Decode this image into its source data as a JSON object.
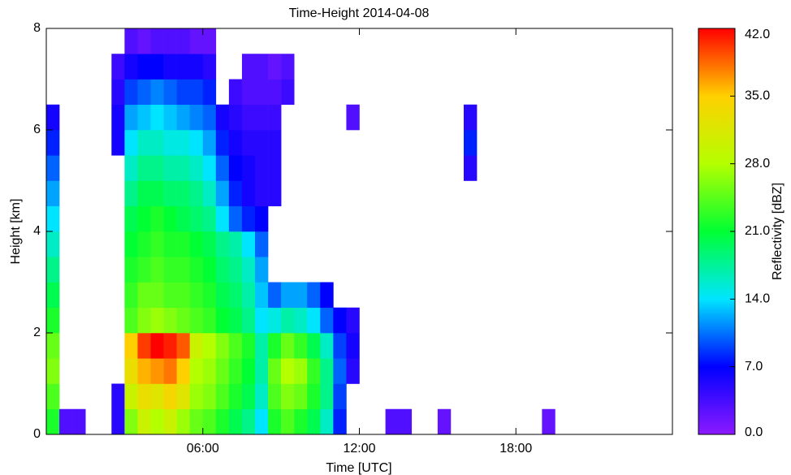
{
  "chart_data": {
    "type": "heatmap",
    "title": "Time-Height  2014-04-08",
    "x_label": "Time [UTC]",
    "y_label": "Height [km]",
    "colorbar_label": "Reflectivity [dBZ]",
    "xlim": [
      0,
      24
    ],
    "xticks": [
      {
        "value": 6,
        "label": "06:00"
      },
      {
        "value": 12,
        "label": "12:00"
      },
      {
        "value": 18,
        "label": "18:00"
      }
    ],
    "ylim": [
      0,
      8
    ],
    "yticks": [
      0,
      2,
      4,
      6,
      8
    ],
    "clim": [
      0,
      42
    ],
    "cticks": [
      {
        "value": 0,
        "label": "0.0"
      },
      {
        "value": 7,
        "label": "7.0"
      },
      {
        "value": 14,
        "label": "14.0"
      },
      {
        "value": 21,
        "label": "21.0"
      },
      {
        "value": 28,
        "label": "28.0"
      },
      {
        "value": 35,
        "label": "35.0"
      },
      {
        "value": 42,
        "label": "42.0"
      }
    ],
    "colormap": [
      "#8c1aff",
      "#0000ff",
      "#00e5ff",
      "#00ff33",
      "#b4ff00",
      "#ffd000",
      "#ff0000"
    ],
    "x": [
      0.25,
      0.75,
      1.25,
      1.75,
      2.25,
      2.75,
      3.25,
      3.75,
      4.25,
      4.75,
      5.25,
      5.75,
      6.25,
      6.75,
      7.25,
      7.75,
      8.25,
      8.75,
      9.25,
      9.75,
      10.25,
      10.75,
      11.25,
      11.75,
      12.25,
      12.75,
      13.25,
      13.75,
      14.25,
      14.75,
      15.25,
      15.75,
      16.25,
      16.75,
      17.25,
      17.75,
      18.25,
      18.75,
      19.25,
      19.75,
      20.25,
      20.75,
      21.25,
      21.75,
      22.25,
      22.75,
      23.25,
      23.75
    ],
    "y": [
      0.25,
      0.75,
      1.25,
      1.75,
      2.25,
      2.75,
      3.25,
      3.75,
      4.25,
      4.75,
      5.25,
      5.75,
      6.25,
      6.75,
      7.25,
      7.75
    ],
    "values": [
      [
        22,
        3,
        3,
        null,
        null,
        5,
        26,
        30,
        28,
        30,
        27,
        25,
        24,
        22,
        20,
        18,
        14,
        22,
        24,
        22,
        20,
        16,
        8,
        null,
        null,
        null,
        3,
        3,
        null,
        null,
        2,
        null,
        null,
        null,
        null,
        null,
        null,
        null,
        2,
        null,
        null,
        null,
        null,
        null,
        null,
        null,
        null,
        null
      ],
      [
        24,
        null,
        null,
        null,
        null,
        5,
        30,
        33,
        32,
        34,
        32,
        27,
        26,
        24,
        22,
        20,
        16,
        24,
        26,
        25,
        22,
        18,
        9,
        null,
        null,
        null,
        null,
        null,
        null,
        null,
        null,
        null,
        null,
        null,
        null,
        null,
        null,
        null,
        null,
        null,
        null,
        null,
        null,
        null,
        null,
        null,
        null,
        null
      ],
      [
        26,
        null,
        null,
        null,
        null,
        null,
        33,
        36,
        37,
        38,
        35,
        28,
        27,
        25,
        23,
        21,
        17,
        25,
        28,
        27,
        23,
        18,
        10,
        5,
        null,
        null,
        null,
        null,
        null,
        null,
        null,
        null,
        null,
        null,
        null,
        null,
        null,
        null,
        null,
        null,
        null,
        null,
        null,
        null,
        null,
        null,
        null,
        null
      ],
      [
        25,
        null,
        null,
        null,
        null,
        null,
        35,
        40,
        42,
        41,
        39,
        30,
        28,
        26,
        24,
        22,
        17,
        22,
        25,
        23,
        20,
        16,
        9,
        6,
        null,
        null,
        null,
        null,
        null,
        null,
        null,
        null,
        null,
        null,
        null,
        null,
        null,
        null,
        null,
        null,
        null,
        null,
        null,
        null,
        null,
        null,
        null,
        null
      ],
      [
        22,
        null,
        null,
        null,
        null,
        null,
        24,
        26,
        27,
        26,
        25,
        24,
        23,
        21,
        20,
        18,
        14,
        15,
        17,
        16,
        14,
        10,
        7,
        5,
        null,
        null,
        null,
        null,
        null,
        null,
        null,
        null,
        null,
        null,
        null,
        null,
        null,
        null,
        null,
        null,
        null,
        null,
        null,
        null,
        null,
        null,
        null,
        null
      ],
      [
        20,
        null,
        null,
        null,
        null,
        null,
        23,
        25,
        25,
        24,
        24,
        23,
        22,
        20,
        19,
        17,
        13,
        10,
        12,
        12,
        10,
        7,
        null,
        null,
        null,
        null,
        null,
        null,
        null,
        null,
        null,
        null,
        null,
        null,
        null,
        null,
        null,
        null,
        null,
        null,
        null,
        null,
        null,
        null,
        null,
        null,
        null,
        null
      ],
      [
        18,
        null,
        null,
        null,
        null,
        null,
        22,
        23,
        24,
        23,
        23,
        22,
        21,
        19,
        18,
        16,
        12,
        null,
        null,
        null,
        null,
        null,
        null,
        null,
        null,
        null,
        null,
        null,
        null,
        null,
        null,
        null,
        null,
        null,
        null,
        null,
        null,
        null,
        null,
        null,
        null,
        null,
        null,
        null,
        null,
        null,
        null,
        null
      ],
      [
        16,
        null,
        null,
        null,
        null,
        null,
        21,
        22,
        23,
        22,
        22,
        21,
        20,
        18,
        17,
        14,
        10,
        null,
        null,
        null,
        null,
        null,
        null,
        null,
        null,
        null,
        null,
        null,
        null,
        null,
        null,
        null,
        null,
        null,
        null,
        null,
        null,
        null,
        null,
        null,
        null,
        null,
        null,
        null,
        null,
        null,
        null,
        null
      ],
      [
        14,
        null,
        null,
        null,
        null,
        null,
        20,
        21,
        22,
        21,
        20,
        19,
        18,
        14,
        10,
        8,
        7,
        null,
        null,
        null,
        null,
        null,
        null,
        null,
        null,
        null,
        null,
        null,
        null,
        null,
        null,
        null,
        null,
        null,
        null,
        null,
        null,
        null,
        null,
        null,
        null,
        null,
        null,
        null,
        null,
        null,
        null,
        null
      ],
      [
        12,
        null,
        null,
        null,
        null,
        null,
        18,
        20,
        20,
        19,
        19,
        18,
        16,
        12,
        8,
        6,
        5,
        5,
        null,
        null,
        null,
        null,
        null,
        null,
        null,
        null,
        null,
        null,
        null,
        null,
        null,
        null,
        null,
        null,
        null,
        null,
        null,
        null,
        null,
        null,
        null,
        null,
        null,
        null,
        null,
        null,
        null,
        null
      ],
      [
        10,
        null,
        null,
        null,
        null,
        null,
        16,
        18,
        18,
        17,
        17,
        16,
        14,
        10,
        7,
        6,
        5,
        5,
        null,
        null,
        null,
        null,
        null,
        null,
        null,
        null,
        null,
        null,
        null,
        null,
        null,
        null,
        5,
        null,
        null,
        null,
        null,
        null,
        null,
        null,
        null,
        null,
        null,
        null,
        null,
        null,
        null,
        null
      ],
      [
        8,
        null,
        null,
        null,
        null,
        6,
        14,
        16,
        16,
        15,
        15,
        14,
        12,
        8,
        6,
        5,
        5,
        5,
        null,
        null,
        null,
        null,
        null,
        null,
        null,
        null,
        null,
        null,
        null,
        null,
        null,
        null,
        8,
        null,
        null,
        null,
        null,
        null,
        null,
        null,
        null,
        null,
        null,
        null,
        null,
        null,
        null,
        null
      ],
      [
        6,
        null,
        null,
        null,
        null,
        6,
        12,
        13,
        14,
        13,
        12,
        11,
        10,
        6,
        5,
        4,
        4,
        4,
        null,
        null,
        null,
        null,
        null,
        3,
        null,
        null,
        null,
        null,
        null,
        null,
        null,
        null,
        5,
        null,
        null,
        null,
        null,
        null,
        null,
        null,
        null,
        null,
        null,
        null,
        null,
        null,
        null,
        null
      ],
      [
        null,
        null,
        null,
        null,
        null,
        5,
        9,
        10,
        11,
        10,
        9,
        9,
        8,
        null,
        4,
        3,
        3,
        3,
        4,
        null,
        null,
        null,
        null,
        null,
        null,
        null,
        null,
        null,
        null,
        null,
        null,
        null,
        null,
        null,
        null,
        null,
        null,
        null,
        null,
        null,
        null,
        null,
        null,
        null,
        null,
        null,
        null,
        null
      ],
      [
        null,
        null,
        null,
        null,
        null,
        4,
        6,
        7,
        7,
        6,
        6,
        6,
        5,
        null,
        null,
        3,
        3,
        2,
        3,
        null,
        null,
        null,
        null,
        null,
        null,
        null,
        null,
        null,
        null,
        null,
        null,
        null,
        null,
        null,
        null,
        null,
        null,
        null,
        null,
        null,
        null,
        null,
        null,
        null,
        null,
        null,
        null,
        null
      ],
      [
        null,
        null,
        null,
        null,
        null,
        null,
        3,
        2,
        3,
        3,
        3,
        2,
        2,
        null,
        null,
        null,
        null,
        null,
        null,
        null,
        null,
        null,
        null,
        null,
        null,
        null,
        null,
        null,
        null,
        null,
        null,
        null,
        null,
        null,
        null,
        null,
        null,
        null,
        null,
        null,
        null,
        null,
        null,
        null,
        null,
        null,
        null,
        null
      ]
    ]
  }
}
